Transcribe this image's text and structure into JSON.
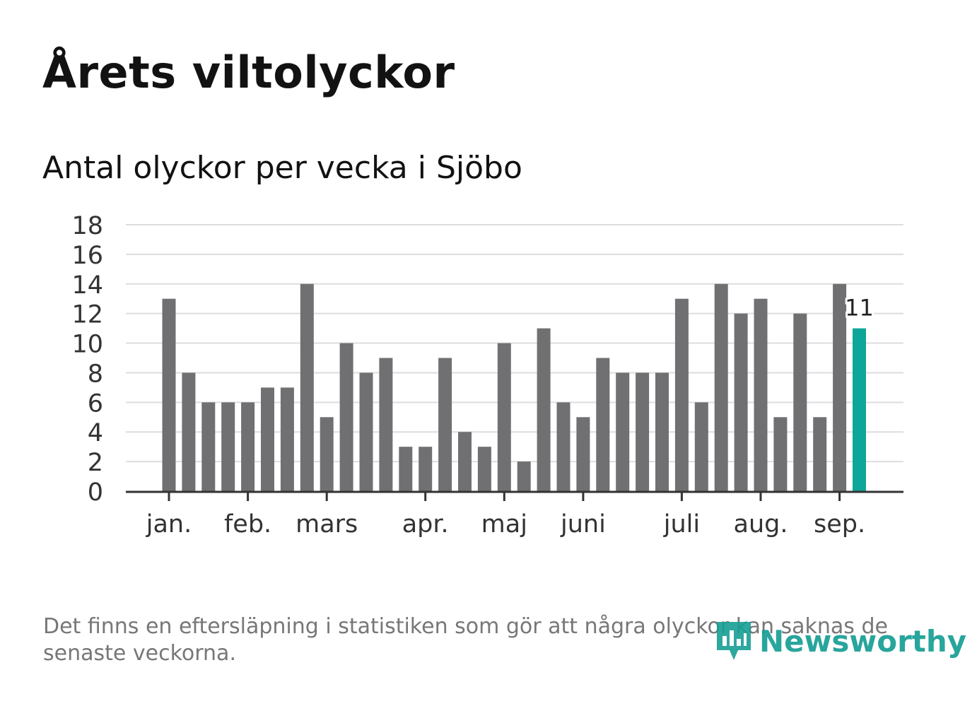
{
  "chart_data": {
    "type": "bar",
    "title": "Årets viltolyckor",
    "subtitle": "Antal olyckor per vecka i Sjöbo",
    "ylim": [
      0,
      18
    ],
    "yticks": [
      0,
      2,
      4,
      6,
      8,
      10,
      12,
      14,
      16,
      18
    ],
    "grid": true,
    "month_labels": [
      {
        "label": "jan.",
        "week": 1
      },
      {
        "label": "feb.",
        "week": 5
      },
      {
        "label": "mars",
        "week": 9
      },
      {
        "label": "apr.",
        "week": 14
      },
      {
        "label": "maj",
        "week": 18
      },
      {
        "label": "juni",
        "week": 22
      },
      {
        "label": "juli",
        "week": 27
      },
      {
        "label": "aug.",
        "week": 31
      },
      {
        "label": "sep.",
        "week": 35
      }
    ],
    "weeks": [
      1,
      2,
      3,
      4,
      5,
      6,
      7,
      8,
      9,
      10,
      11,
      12,
      13,
      14,
      15,
      16,
      17,
      18,
      19,
      20,
      21,
      22,
      23,
      24,
      25,
      26,
      27,
      28,
      29,
      30,
      31,
      32,
      33,
      34,
      35,
      36
    ],
    "values": [
      13,
      8,
      6,
      6,
      6,
      7,
      7,
      14,
      5,
      10,
      8,
      9,
      3,
      3,
      9,
      4,
      3,
      10,
      2,
      11,
      6,
      5,
      9,
      8,
      8,
      8,
      13,
      6,
      14,
      12,
      13,
      5,
      12,
      5,
      14,
      11
    ],
    "highlight_index": 35,
    "highlight_label": "11",
    "colors": {
      "bar": "#707073",
      "highlight": "#0fa69a",
      "grid": "#dddddd",
      "axis": "#333333",
      "text": "#333333"
    }
  },
  "footnote": "Det finns en eftersläpning i statistiken som gör att några olyckor kan saknas de senaste veckorna.",
  "logo": {
    "text": "Newsworthy",
    "icon": "newsworthy-chart-icon"
  }
}
